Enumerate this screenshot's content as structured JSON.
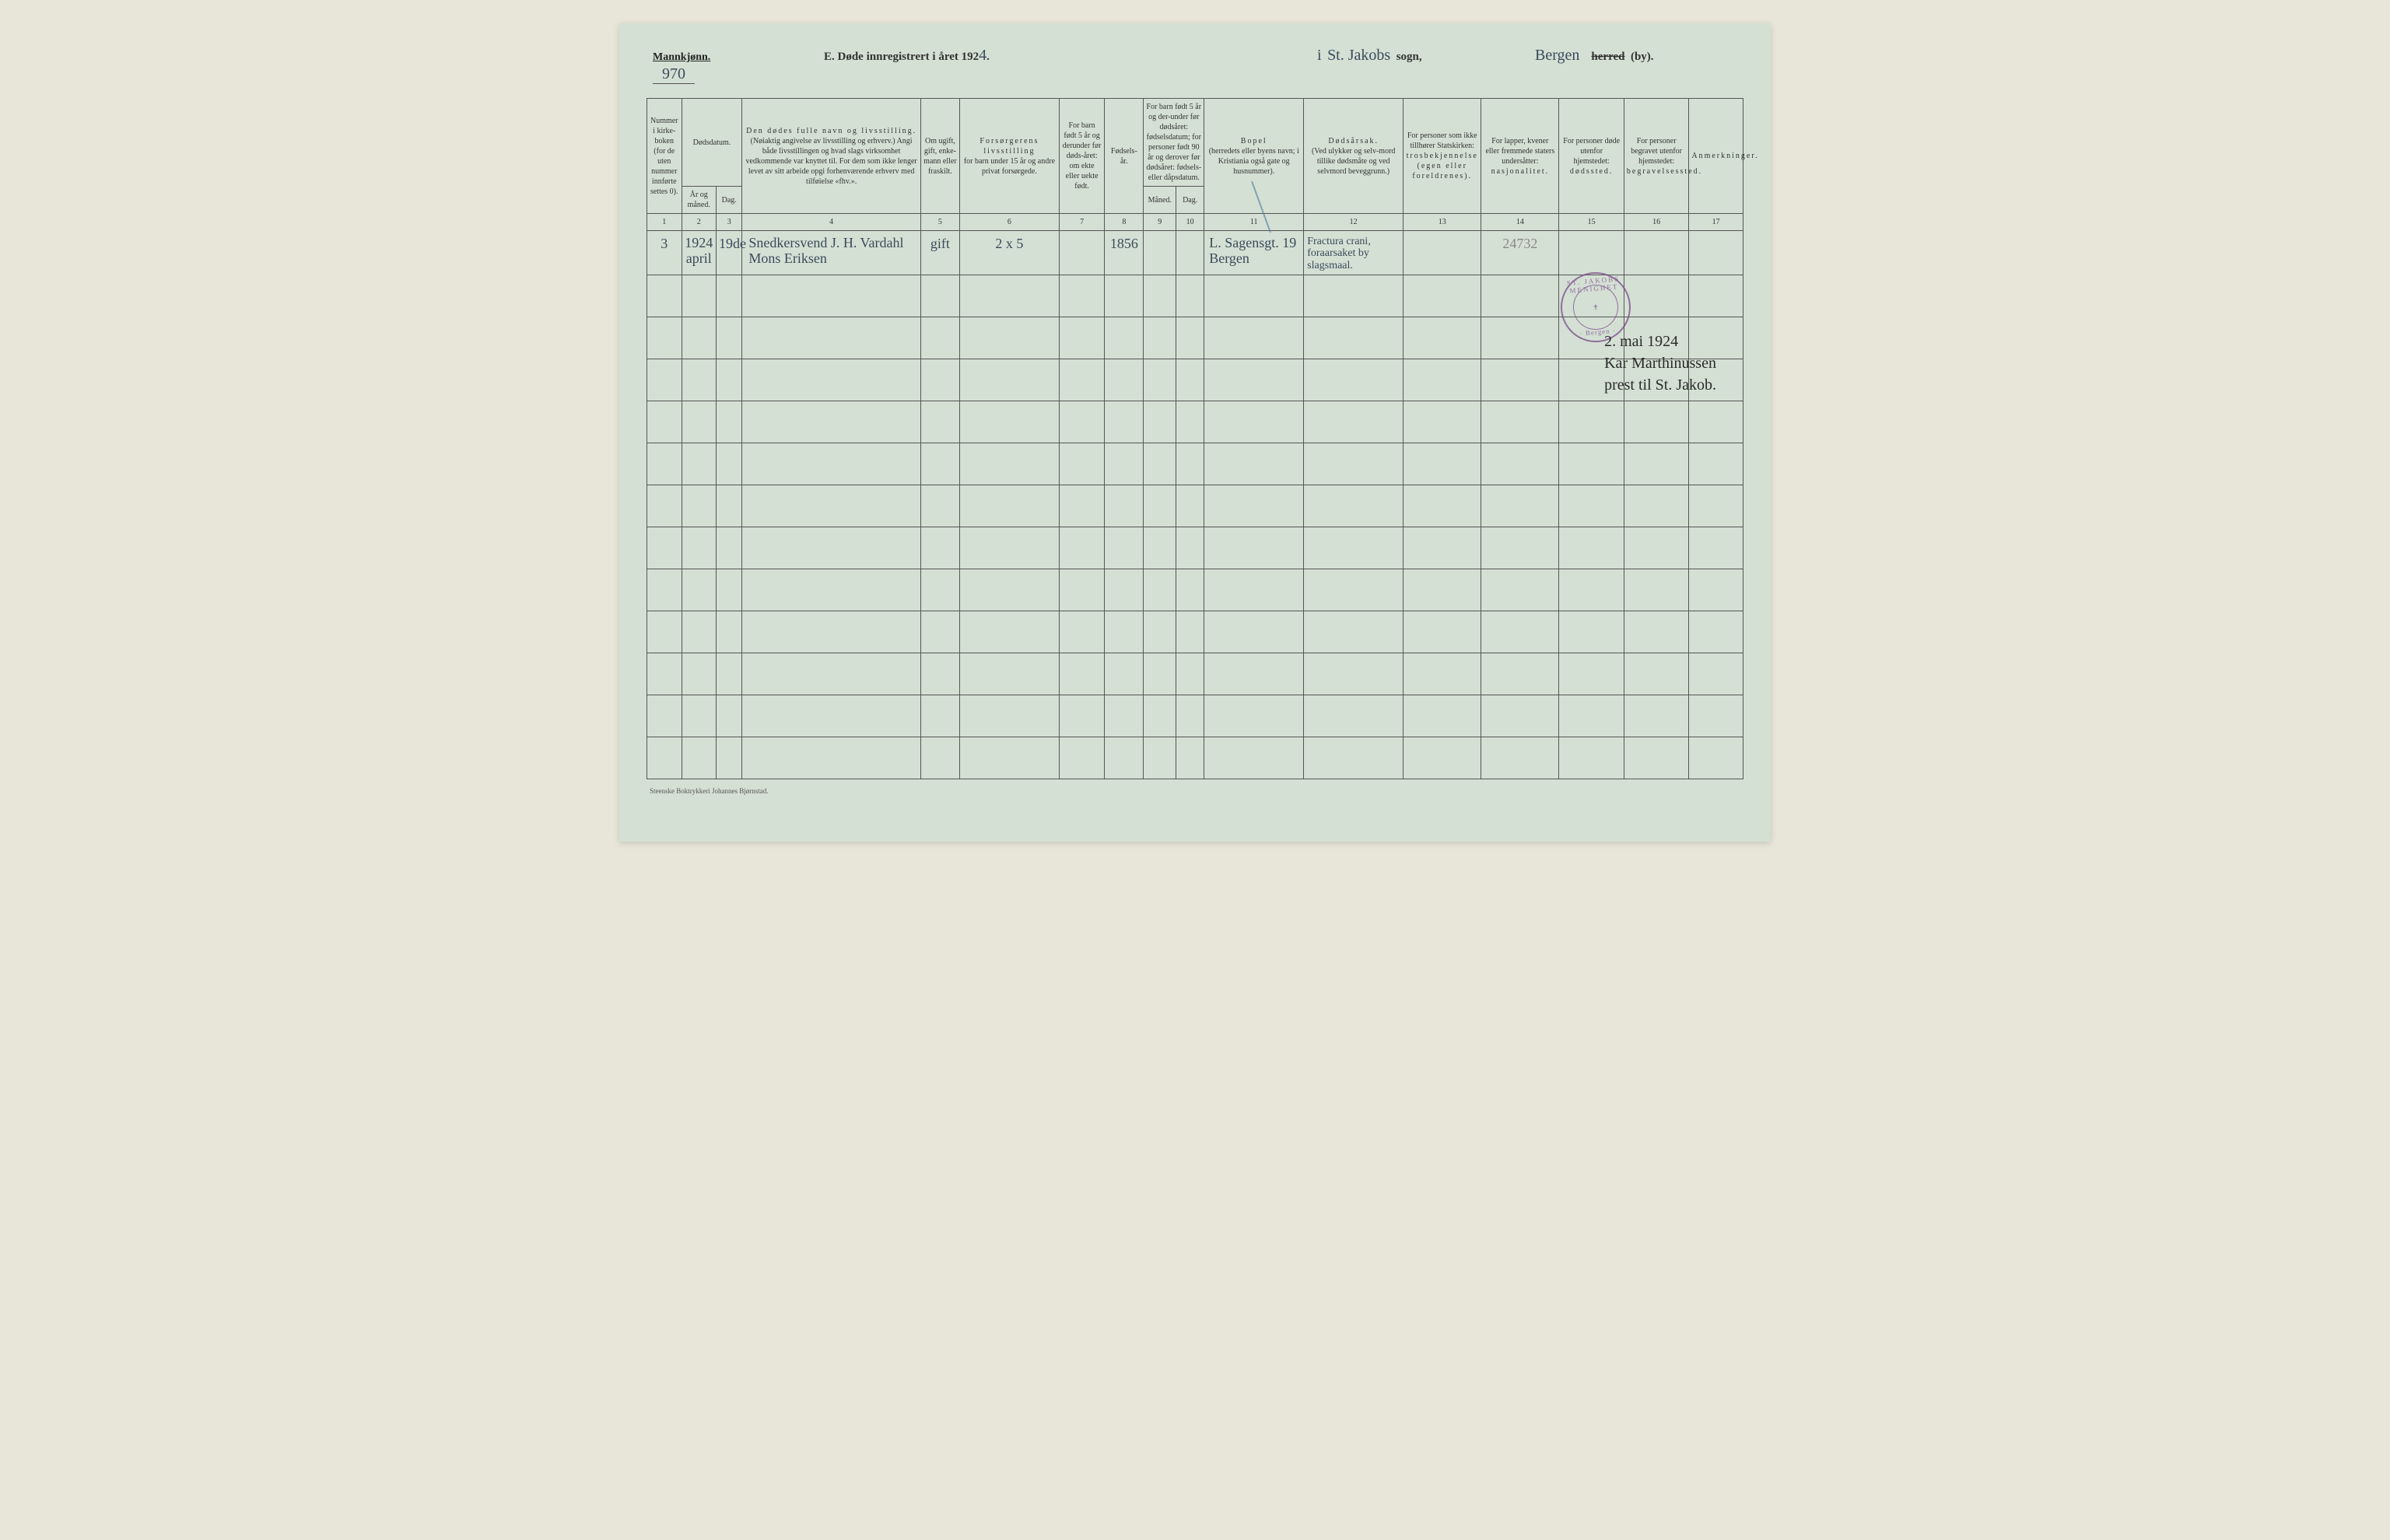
{
  "header": {
    "gender_label": "Mannkjønn.",
    "page_number": "970",
    "title_prefix": "E.  Døde innregistrert i året 192",
    "title_year_suffix": "4",
    "title_period": ".",
    "parish_prefix": "i",
    "parish_name": "St. Jakobs",
    "parish_suffix": "sogn,",
    "city_name": "Bergen",
    "city_strikethrough": "herred",
    "city_suffix": "(by)."
  },
  "columns": {
    "h1": "Nummer i kirke-boken (for de uten nummer innførte settes 0).",
    "h2_group": "Dødsdatum.",
    "h2": "År og måned.",
    "h3": "Dag.",
    "h4_main": "Den dødes fulle navn og livsstilling.",
    "h4_sub": "(Nøiaktig angivelse av livsstilling og erhverv.) Angi både livsstillingen og hvad slags virksomhet vedkommende var knyttet til. For dem som ikke lenger levet av sitt arbeide opgi forhenværende erhverv med tilføielse «fhv.».",
    "h5": "Om ugift, gift, enke-mann eller fraskilt.",
    "h6_main": "Forsørgerens livsstilling",
    "h6_sub": "for barn under 15 år og andre privat forsørgede.",
    "h7": "For barn født 5 år og derunder før døds-året: om ekte eller uekte født.",
    "h8": "Fødsels-år.",
    "h9_10_group": "For barn født 5 år og der-under før dødsåret: fødselsdatum; for personer født 90 år og derover før dødsåret: fødsels- eller dåpsdatum.",
    "h9": "Måned.",
    "h10": "Dag.",
    "h11_main": "Bopel",
    "h11_sub": "(herredets eller byens navn; i Kristiania også gate og husnummer).",
    "h12_main": "Dødsårsak.",
    "h12_sub": "(Ved ulykker og selv-mord tillike dødsmåte og ved selvmord beveggrunn.)",
    "h13_main": "For personer som ikke tillhører Statskirken:",
    "h13_sub": "trosbekjennelse (egen eller foreldrenes).",
    "h14_main": "For lapper, kvener eller fremmede staters undersåtter:",
    "h14_sub": "nasjonalitet.",
    "h15_main": "For personer døde utenfor hjemstedet:",
    "h15_sub": "dødssted.",
    "h16_main": "For personer begravet utenfor hjemstedet:",
    "h16_sub": "begravelsessted.",
    "h17": "Anmerkninger."
  },
  "col_numbers": [
    "1",
    "2",
    "3",
    "4",
    "5",
    "6",
    "7",
    "8",
    "9",
    "10",
    "11",
    "12",
    "13",
    "14",
    "15",
    "16",
    "17"
  ],
  "entry": {
    "num": "3",
    "year_month": "1924 april",
    "day": "19de",
    "name": "Snedkersvend J. H. Vardahl Mons Eriksen",
    "marital": "gift",
    "provider": "2 x 5",
    "birth_year": "1856",
    "residence": "L. Sagensgt. 19 Bergen",
    "cause": "Fractura crani, foraarsaket by slagsmaal.",
    "col14": "24732"
  },
  "stamp": {
    "ring_top": "ST. JAKOBS MENIGHET",
    "ring_bottom": "· Bergen ·",
    "center": "✝"
  },
  "signature": {
    "line1": "2. mai 1924",
    "line2": "Kar Marthinussen",
    "line3": "prest til St. Jakob."
  },
  "footer": "Steenske Boktrykkeri Johannes Bjørnstad.",
  "style": {
    "page_bg": "#d4e0d4",
    "body_bg": "#e8e6d8",
    "border_color": "#555",
    "ink_color": "#3a4a5a",
    "stamp_color": "#7a4a8a",
    "empty_rows": 12
  }
}
